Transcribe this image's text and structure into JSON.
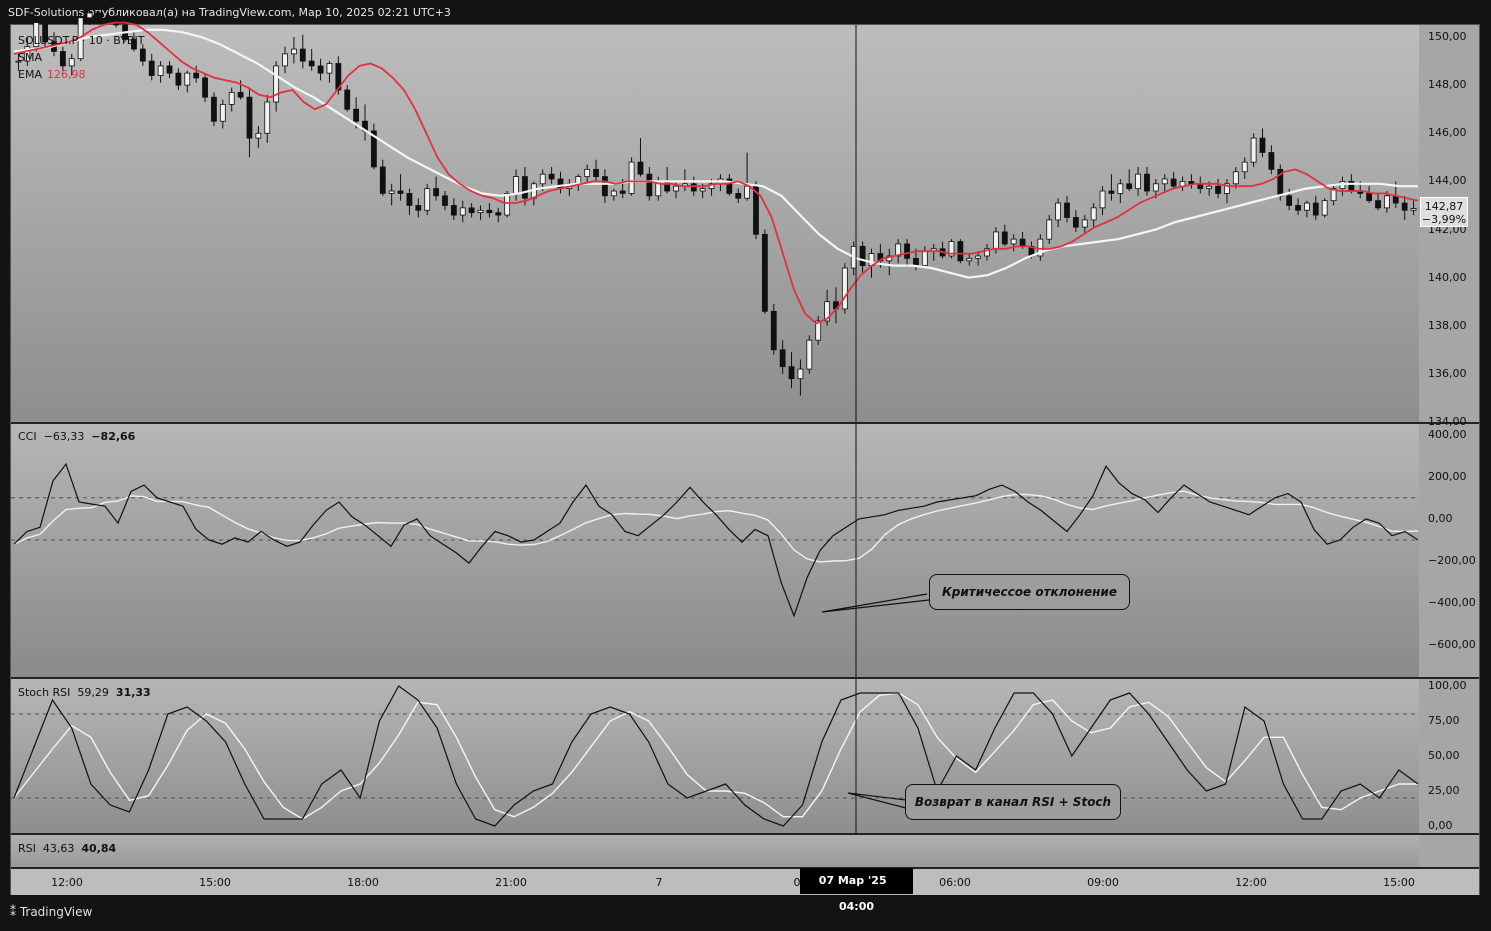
{
  "header": "SDF-Solutions опубликовал(а) на TradingView.com, Мар 10, 2025 02:21 UTC+3",
  "main": {
    "legend_symbol": "SOLUSDT.P · 10 · BYBIT",
    "legend_sma": "SMA",
    "legend_ema": "EMA",
    "legend_ema_value": "126,98",
    "price_ticks": [
      "150,00",
      "148,00",
      "146,00",
      "144,00",
      "142,00",
      "140,00",
      "138,00",
      "136,00",
      "134,00"
    ],
    "last_price": "142,87",
    "last_change": "−3,99%"
  },
  "cci": {
    "label": "CCI",
    "value1": "−63,33",
    "value2": "−82,66",
    "ticks": [
      "400,00",
      "200,00",
      "0,00",
      "−200,00",
      "−400,00",
      "−600,00"
    ],
    "note": "Критичесcое отклонение"
  },
  "stoch": {
    "label": "Stoch RSI",
    "value1": "59,29",
    "value2": "31,33",
    "ticks": [
      "100,00",
      "75,00",
      "50,00",
      "25,00",
      "0,00"
    ],
    "note": "Возврат в канал RSI + Stoch"
  },
  "rsi": {
    "label": "RSI",
    "value1": "43,63",
    "value2": "40,84"
  },
  "time_axis": {
    "ticks": [
      "12:00",
      "15:00",
      "18:00",
      "21:00",
      "7",
      "0",
      "06:00",
      "09:00",
      "12:00",
      "15:00"
    ],
    "cross_date": "07 Мар '25",
    "cross_time": "04:00"
  },
  "logo": "TradingView",
  "chart_data": {
    "type": "candlestick",
    "symbol": "SOLUSDT.P",
    "interval": "10",
    "exchange": "BYBIT",
    "ylim": [
      134,
      150.5
    ],
    "candles_ohlc": [
      [
        149,
        149.3,
        148.6,
        149
      ],
      [
        149,
        150,
        148.8,
        149.6
      ],
      [
        149.6,
        151,
        149.4,
        150.6
      ],
      [
        150.6,
        150.8,
        149.6,
        149.8
      ],
      [
        149.8,
        150.2,
        149.2,
        149.4
      ],
      [
        149.4,
        149.6,
        148.6,
        148.8
      ],
      [
        148.8,
        149.3,
        148.4,
        149.1
      ],
      [
        149.1,
        151,
        149,
        150.8
      ],
      [
        150.8,
        151.2,
        150.5,
        151
      ],
      [
        151,
        151.1,
        150.7,
        150.8
      ],
      [
        150.8,
        151,
        150.5,
        150.7
      ],
      [
        150.7,
        150.9,
        150.4,
        150.5
      ],
      [
        150.5,
        150.6,
        149.8,
        149.9
      ],
      [
        149.9,
        150.2,
        149.4,
        149.5
      ],
      [
        149.5,
        149.7,
        148.8,
        149
      ],
      [
        149,
        149.3,
        148.2,
        148.4
      ],
      [
        148.4,
        149,
        148.1,
        148.8
      ],
      [
        148.8,
        149,
        148.3,
        148.5
      ],
      [
        148.5,
        148.7,
        147.8,
        148
      ],
      [
        148,
        148.6,
        147.7,
        148.5
      ],
      [
        148.5,
        148.8,
        148.1,
        148.3
      ],
      [
        148.3,
        148.5,
        147.3,
        147.5
      ],
      [
        147.5,
        147.7,
        146.3,
        146.5
      ],
      [
        146.5,
        147.4,
        146.2,
        147.2
      ],
      [
        147.2,
        147.9,
        146.9,
        147.7
      ],
      [
        147.7,
        148.2,
        147.4,
        147.5
      ],
      [
        147.5,
        147.9,
        145,
        145.8
      ],
      [
        145.8,
        146.3,
        145.4,
        146
      ],
      [
        146,
        147.6,
        145.6,
        147.3
      ],
      [
        147.3,
        149,
        146.9,
        148.8
      ],
      [
        148.8,
        149.6,
        148.5,
        149.3
      ],
      [
        149.3,
        150,
        148.9,
        149.5
      ],
      [
        149.5,
        150.1,
        148.7,
        149
      ],
      [
        149,
        149.5,
        148.6,
        148.8
      ],
      [
        148.8,
        149.1,
        148.2,
        148.5
      ],
      [
        148.5,
        149,
        148.1,
        148.9
      ],
      [
        148.9,
        149.2,
        147.6,
        147.8
      ],
      [
        147.8,
        148,
        146.9,
        147
      ],
      [
        147,
        147.5,
        146.2,
        146.5
      ],
      [
        146.5,
        147.2,
        145.7,
        146.1
      ],
      [
        146.1,
        146.4,
        144.5,
        144.6
      ],
      [
        144.6,
        144.9,
        143.4,
        143.5
      ],
      [
        143.5,
        143.9,
        143,
        143.6
      ],
      [
        143.6,
        144.3,
        143.2,
        143.5
      ],
      [
        143.5,
        143.7,
        142.6,
        143
      ],
      [
        143,
        143.3,
        142.5,
        142.8
      ],
      [
        142.8,
        143.9,
        142.6,
        143.7
      ],
      [
        143.7,
        144.2,
        143.2,
        143.4
      ],
      [
        143.4,
        143.6,
        142.8,
        143
      ],
      [
        143,
        143.3,
        142.4,
        142.6
      ],
      [
        142.6,
        143.2,
        142.3,
        142.9
      ],
      [
        142.9,
        143.1,
        142.5,
        142.7
      ],
      [
        142.7,
        143,
        142.4,
        142.8
      ],
      [
        142.8,
        143.1,
        142.5,
        142.7
      ],
      [
        142.7,
        142.9,
        142.3,
        142.6
      ],
      [
        142.6,
        143.6,
        142.5,
        143.5
      ],
      [
        143.5,
        144.5,
        143.2,
        144.2
      ],
      [
        144.2,
        144.6,
        143,
        143.3
      ],
      [
        143.3,
        144,
        143,
        143.9
      ],
      [
        143.9,
        144.5,
        143.6,
        144.3
      ],
      [
        144.3,
        144.6,
        143.9,
        144.1
      ],
      [
        144.1,
        144.4,
        143.5,
        143.7
      ],
      [
        143.7,
        144.1,
        143.4,
        143.9
      ],
      [
        143.9,
        144.3,
        143.6,
        144.2
      ],
      [
        144.2,
        144.7,
        143.9,
        144.5
      ],
      [
        144.5,
        144.9,
        144,
        144.2
      ],
      [
        144.2,
        144.5,
        143.1,
        143.4
      ],
      [
        143.4,
        143.7,
        143.2,
        143.6
      ],
      [
        143.6,
        144.1,
        143.3,
        143.5
      ],
      [
        143.5,
        145,
        143.4,
        144.8
      ],
      [
        144.8,
        145.8,
        144.2,
        144.3
      ],
      [
        144.3,
        144.6,
        143.2,
        143.4
      ],
      [
        143.4,
        144.2,
        143.2,
        144
      ],
      [
        144,
        144.6,
        143.5,
        143.6
      ],
      [
        143.6,
        144,
        143.3,
        143.8
      ],
      [
        143.8,
        144.5,
        143.6,
        143.9
      ],
      [
        143.9,
        144.2,
        143.4,
        143.6
      ],
      [
        143.6,
        143.9,
        143.3,
        143.7
      ],
      [
        143.7,
        144.1,
        143.4,
        143.9
      ],
      [
        143.9,
        144.3,
        143.6,
        144.1
      ],
      [
        144.1,
        144.3,
        143.4,
        143.5
      ],
      [
        143.5,
        143.7,
        143.1,
        143.3
      ],
      [
        143.3,
        145.2,
        143.2,
        143.8
      ],
      [
        143.8,
        144,
        141.6,
        141.8
      ],
      [
        141.8,
        142,
        138.5,
        138.6
      ],
      [
        138.6,
        138.9,
        136.8,
        137
      ],
      [
        137,
        137.4,
        136,
        136.3
      ],
      [
        136.3,
        136.9,
        135.4,
        135.8
      ],
      [
        135.8,
        136.6,
        135.1,
        136.2
      ],
      [
        136.2,
        137.6,
        136,
        137.4
      ],
      [
        137.4,
        138.4,
        137.2,
        138.2
      ],
      [
        138.2,
        139.5,
        138,
        139
      ],
      [
        139,
        139.6,
        138.1,
        138.7
      ],
      [
        138.7,
        140.6,
        138.5,
        140.4
      ],
      [
        140.4,
        141.5,
        140.1,
        141.3
      ],
      [
        141.3,
        141.5,
        140.2,
        140.5
      ],
      [
        140.5,
        141.2,
        140,
        141
      ],
      [
        141,
        141.4,
        140.4,
        140.7
      ],
      [
        140.7,
        141.2,
        140.1,
        140.9
      ],
      [
        140.9,
        141.6,
        140.6,
        141.4
      ],
      [
        141.4,
        141.6,
        140.5,
        140.8
      ],
      [
        140.8,
        141.2,
        140.3,
        140.5
      ],
      [
        140.5,
        141.3,
        140.4,
        141.1
      ],
      [
        141.1,
        141.4,
        140.7,
        141.2
      ],
      [
        141.2,
        141.5,
        140.8,
        140.9
      ],
      [
        140.9,
        141.6,
        140.8,
        141.5
      ],
      [
        141.5,
        141.6,
        140.6,
        140.7
      ],
      [
        140.7,
        141,
        140.5,
        140.8
      ],
      [
        140.8,
        141.1,
        140.5,
        140.9
      ],
      [
        140.9,
        141.4,
        140.7,
        141.2
      ],
      [
        141.2,
        142.1,
        141,
        141.9
      ],
      [
        141.9,
        142.2,
        141.3,
        141.4
      ],
      [
        141.4,
        141.8,
        141.1,
        141.6
      ],
      [
        141.6,
        141.9,
        141.2,
        141.3
      ],
      [
        141.3,
        141.5,
        140.8,
        140.9
      ],
      [
        140.9,
        141.8,
        140.7,
        141.6
      ],
      [
        141.6,
        142.6,
        141.4,
        142.4
      ],
      [
        142.4,
        143.3,
        142.1,
        143.1
      ],
      [
        143.1,
        143.4,
        142.3,
        142.5
      ],
      [
        142.5,
        142.8,
        141.9,
        142.1
      ],
      [
        142.1,
        142.6,
        141.8,
        142.4
      ],
      [
        142.4,
        143.1,
        142.1,
        142.9
      ],
      [
        142.9,
        143.8,
        142.6,
        143.6
      ],
      [
        143.6,
        144.3,
        143.2,
        143.5
      ],
      [
        143.5,
        144.1,
        143.1,
        143.9
      ],
      [
        143.9,
        144.5,
        143.6,
        143.7
      ],
      [
        143.7,
        144.6,
        143.4,
        144.3
      ],
      [
        144.3,
        144.6,
        143.4,
        143.6
      ],
      [
        143.6,
        144.1,
        143.3,
        143.9
      ],
      [
        143.9,
        144.3,
        143.6,
        144.1
      ],
      [
        144.1,
        144.4,
        143.7,
        143.8
      ],
      [
        143.8,
        144.2,
        143.6,
        144
      ],
      [
        144,
        144.3,
        143.7,
        143.9
      ],
      [
        143.9,
        144.2,
        143.5,
        143.7
      ],
      [
        143.7,
        144,
        143.4,
        143.8
      ],
      [
        143.8,
        144.1,
        143.3,
        143.5
      ],
      [
        143.5,
        144.1,
        143.1,
        143.9
      ],
      [
        143.9,
        144.6,
        143.7,
        144.4
      ],
      [
        144.4,
        145,
        144.1,
        144.8
      ],
      [
        144.8,
        146,
        144.6,
        145.8
      ],
      [
        145.8,
        146.2,
        145,
        145.2
      ],
      [
        145.2,
        145.5,
        144.3,
        144.5
      ],
      [
        144.5,
        144.7,
        143.2,
        143.4
      ],
      [
        143.4,
        143.7,
        142.8,
        143
      ],
      [
        143,
        143.3,
        142.6,
        142.8
      ],
      [
        142.8,
        143.2,
        142.5,
        143.1
      ],
      [
        143.1,
        143.4,
        142.4,
        142.6
      ],
      [
        142.6,
        143.3,
        142.5,
        143.2
      ],
      [
        143.2,
        143.9,
        143,
        143.7
      ],
      [
        143.7,
        144.2,
        143.4,
        144
      ],
      [
        144,
        144.3,
        143.5,
        143.6
      ],
      [
        143.6,
        144,
        143.3,
        143.5
      ],
      [
        143.5,
        143.8,
        143.1,
        143.2
      ],
      [
        143.2,
        143.5,
        142.8,
        142.9
      ],
      [
        142.9,
        143.6,
        142.7,
        143.4
      ],
      [
        143.4,
        144,
        142.9,
        143.1
      ],
      [
        143.1,
        143.4,
        142.4,
        142.8
      ],
      [
        142.8,
        143.2,
        142.6,
        142.87
      ]
    ],
    "ema_red": [
      149.3,
      149.4,
      149.5,
      149.6,
      149.7,
      149.8,
      150,
      150.3,
      150.5,
      150.6,
      150.6,
      150.5,
      150.2,
      149.8,
      149.4,
      149,
      148.7,
      148.5,
      148.3,
      148.2,
      148.1,
      147.9,
      147.6,
      147.5,
      147.7,
      147.8,
      147.3,
      147,
      147.2,
      147.8,
      148.4,
      148.8,
      148.9,
      148.7,
      148.3,
      147.8,
      147,
      146,
      145,
      144.3,
      143.9,
      143.6,
      143.4,
      143.3,
      143.1,
      143.1,
      143.2,
      143.4,
      143.6,
      143.7,
      143.8,
      143.9,
      144,
      144,
      143.9,
      144,
      144,
      144,
      143.9,
      143.9,
      143.8,
      143.8,
      143.8,
      143.9,
      143.9,
      144,
      143.8,
      143.4,
      142.5,
      141,
      139.5,
      138.5,
      138.1,
      138.3,
      138.8,
      139.5,
      140.1,
      140.5,
      140.8,
      140.9,
      141,
      141.1,
      141.1,
      141.1,
      141,
      141,
      141,
      141.1,
      141.2,
      141.2,
      141.3,
      141.3,
      141.2,
      141.2,
      141.3,
      141.5,
      141.8,
      142.1,
      142.3,
      142.5,
      142.8,
      143.1,
      143.3,
      143.5,
      143.7,
      143.8,
      143.9,
      143.9,
      143.9,
      143.8,
      143.8,
      143.8,
      143.9,
      144.1,
      144.4,
      144.5,
      144.3,
      144,
      143.7,
      143.6,
      143.6,
      143.6,
      143.5,
      143.5,
      143.4,
      143.3,
      143.2
    ],
    "sma_white": [
      149.4,
      149.5,
      149.6,
      149.8,
      150,
      150.1,
      150.2,
      150.3,
      150.3,
      150.2,
      150,
      149.7,
      149.3,
      148.9,
      148.4,
      147.9,
      147.5,
      147,
      146.5,
      146,
      145.5,
      145,
      144.6,
      144.2,
      143.8,
      143.5,
      143.4,
      143.5,
      143.7,
      143.8,
      143.9,
      143.9,
      143.9,
      144,
      144,
      144,
      144,
      144,
      144,
      143.9,
      143.8,
      143.4,
      142.6,
      141.8,
      141.2,
      140.8,
      140.6,
      140.5,
      140.5,
      140.4,
      140.2,
      140,
      140.1,
      140.4,
      140.8,
      141.1,
      141.3,
      141.4,
      141.5,
      141.6,
      141.8,
      142,
      142.3,
      142.5,
      142.7,
      142.9,
      143.1,
      143.3,
      143.5,
      143.7,
      143.8,
      143.9,
      143.9,
      143.9,
      143.8,
      143.8
    ],
    "cci": {
      "ylim": [
        -750,
        450
      ],
      "levels": [
        100,
        -100
      ],
      "cci_black": [
        -120,
        -60,
        -40,
        180,
        260,
        80,
        70,
        60,
        -20,
        130,
        160,
        100,
        80,
        60,
        -50,
        -100,
        -120,
        -90,
        -110,
        -60,
        -100,
        -130,
        -110,
        -30,
        40,
        80,
        10,
        -30,
        -80,
        -130,
        -30,
        0,
        -80,
        -120,
        -160,
        -210,
        -130,
        -60,
        -80,
        -110,
        -100,
        -60,
        -20,
        80,
        160,
        60,
        20,
        -60,
        -80,
        -30,
        20,
        80,
        150,
        80,
        20,
        -50,
        -110,
        -50,
        -80,
        -300,
        -460,
        -280,
        -150,
        -80,
        -40,
        0,
        10,
        20,
        40,
        50,
        60,
        80,
        90,
        100,
        110,
        140,
        160,
        130,
        80,
        40,
        -10,
        -60,
        20,
        110,
        250,
        170,
        120,
        90,
        30,
        100,
        160,
        120,
        80,
        60,
        40,
        20,
        60,
        100,
        120,
        80,
        -50,
        -120,
        -100,
        -40,
        0,
        -20,
        -80,
        -60,
        -100
      ]
    },
    "stoch_rsi": {
      "ylim": [
        -5,
        105
      ],
      "levels": [
        80,
        20
      ],
      "k_black": [
        20,
        55,
        90,
        70,
        30,
        15,
        10,
        40,
        80,
        85,
        75,
        60,
        30,
        5,
        5,
        5,
        30,
        40,
        20,
        75,
        100,
        90,
        70,
        30,
        5,
        0,
        15,
        25,
        30,
        60,
        80,
        85,
        80,
        60,
        30,
        20,
        25,
        30,
        15,
        5,
        0,
        15,
        60,
        90,
        95,
        95,
        95,
        70,
        25,
        50,
        40,
        70,
        95,
        95,
        80,
        50,
        70,
        90,
        95,
        80,
        60,
        40,
        25,
        30,
        85,
        75,
        30,
        5,
        5,
        25,
        30,
        20,
        40,
        30
      ]
    }
  }
}
